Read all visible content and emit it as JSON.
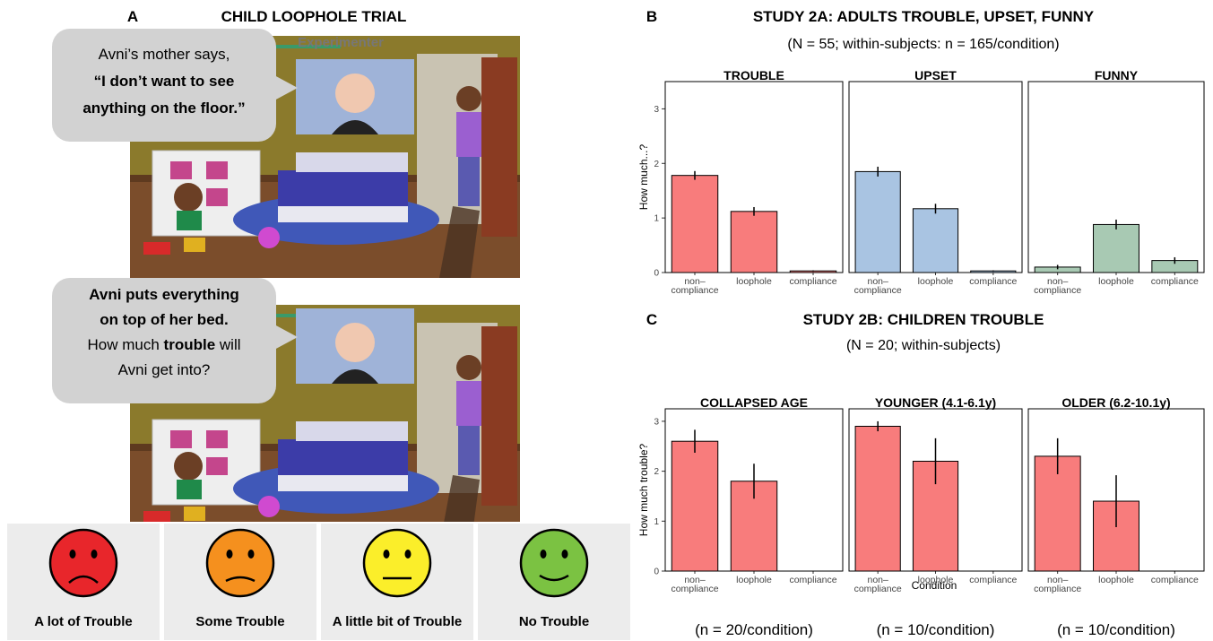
{
  "panel_a": {
    "label": "A",
    "title": "CHILD LOOPHOLE TRIAL",
    "camera_label": "Experimenter",
    "bubble_1": {
      "line_1": "Avni’s mother says,",
      "line_2": "“I don’t want to see",
      "line_3": "anything on the floor.”"
    },
    "bubble_2": {
      "line_1": "Avni puts everything",
      "line_2": "on top of her bed.",
      "line_3a": "How much",
      "line_3b": "trouble",
      "line_3c": "will",
      "line_4": "Avni get into?"
    },
    "responses": [
      "A lot of Trouble",
      "Some Trouble",
      "A little bit of Trouble",
      "No Trouble"
    ]
  },
  "chart_data": [
    {
      "type": "bar",
      "panel": "B",
      "title": "STUDY 2A: ADULTS TROUBLE, UPSET, FUNNY",
      "subtitle": "(N = 55; within-subjects: n = 165/condition)",
      "ylabel": "How much...?",
      "categories": [
        "non–\ncompliance",
        "loophole",
        "compliance"
      ],
      "ylim": [
        0,
        3.5
      ],
      "yticks": [
        0,
        1,
        2,
        3
      ],
      "facets": [
        {
          "title": "TROUBLE",
          "color": "#f87c7c",
          "values": [
            1.78,
            1.12,
            0.03
          ],
          "errors": [
            0.08,
            0.08,
            0.01
          ]
        },
        {
          "title": "UPSET",
          "color": "#a9c4e2",
          "values": [
            1.85,
            1.17,
            0.03
          ],
          "errors": [
            0.09,
            0.09,
            0.01
          ]
        },
        {
          "title": "FUNNY",
          "color": "#a8c9b3",
          "values": [
            0.1,
            0.88,
            0.22
          ],
          "errors": [
            0.04,
            0.09,
            0.06
          ]
        }
      ]
    },
    {
      "type": "bar",
      "panel": "C",
      "title": "STUDY 2B: CHILDREN TROUBLE",
      "subtitle": "(N = 20; within-subjects)",
      "ylabel": "How much trouble?",
      "xlabel": "Condition",
      "categories": [
        "non–\ncompliance",
        "loophole",
        "compliance"
      ],
      "ylim": [
        0,
        3.25
      ],
      "yticks": [
        0,
        1,
        2,
        3
      ],
      "facets": [
        {
          "title": "COLLAPSED AGE",
          "note": "(n = 20/condition)",
          "color": "#f87c7c",
          "values": [
            2.6,
            1.8,
            0
          ],
          "errors": [
            0.23,
            0.35,
            0
          ]
        },
        {
          "title": "YOUNGER (4.1-6.1y)",
          "note": "(n = 10/condition)",
          "color": "#f87c7c",
          "values": [
            2.9,
            2.2,
            0
          ],
          "errors": [
            0.1,
            0.46,
            0
          ]
        },
        {
          "title": "OLDER (6.2-10.1y)",
          "note": "(n = 10/condition)",
          "color": "#f87c7c",
          "values": [
            2.3,
            1.4,
            0
          ],
          "errors": [
            0.36,
            0.52,
            0
          ]
        }
      ]
    }
  ]
}
